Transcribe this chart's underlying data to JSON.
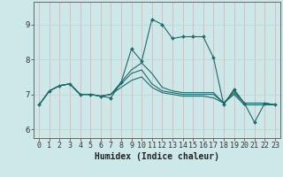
{
  "title": "",
  "xlabel": "Humidex (Indice chaleur)",
  "bg_color": "#cde8e8",
  "grid_color_v": "#e8b0b0",
  "grid_color_h": "#b8d8d8",
  "line_color": "#1a6b6b",
  "x_ticks": [
    0,
    1,
    2,
    3,
    4,
    5,
    6,
    7,
    8,
    9,
    10,
    11,
    12,
    13,
    14,
    15,
    16,
    17,
    18,
    19,
    20,
    21,
    22,
    23
  ],
  "ylim": [
    5.75,
    9.65
  ],
  "xlim": [
    -0.5,
    23.5
  ],
  "series": [
    [
      6.7,
      7.1,
      7.25,
      7.3,
      7.0,
      7.0,
      6.95,
      6.9,
      7.35,
      8.3,
      7.95,
      9.15,
      9.0,
      8.6,
      8.65,
      8.65,
      8.65,
      8.05,
      6.7,
      7.15,
      6.75,
      6.2,
      6.75,
      6.7
    ],
    [
      6.7,
      7.1,
      7.25,
      7.3,
      7.0,
      7.0,
      6.95,
      7.0,
      7.35,
      7.7,
      7.9,
      7.6,
      7.2,
      7.1,
      7.05,
      7.05,
      7.05,
      7.05,
      6.75,
      7.1,
      6.75,
      6.75,
      6.75,
      6.7
    ],
    [
      6.7,
      7.1,
      7.25,
      7.3,
      7.0,
      7.0,
      6.95,
      7.0,
      7.3,
      7.6,
      7.7,
      7.3,
      7.1,
      7.05,
      7.0,
      7.0,
      7.0,
      7.0,
      6.75,
      7.05,
      6.75,
      6.75,
      6.75,
      6.7
    ],
    [
      6.7,
      7.1,
      7.25,
      7.3,
      7.0,
      7.0,
      6.95,
      7.0,
      7.2,
      7.4,
      7.5,
      7.2,
      7.05,
      7.0,
      6.95,
      6.95,
      6.95,
      6.9,
      6.75,
      7.0,
      6.7,
      6.7,
      6.7,
      6.7
    ]
  ],
  "ytick_values": [
    6,
    7,
    8,
    9
  ],
  "tick_fontsize": 6,
  "label_fontsize": 7
}
